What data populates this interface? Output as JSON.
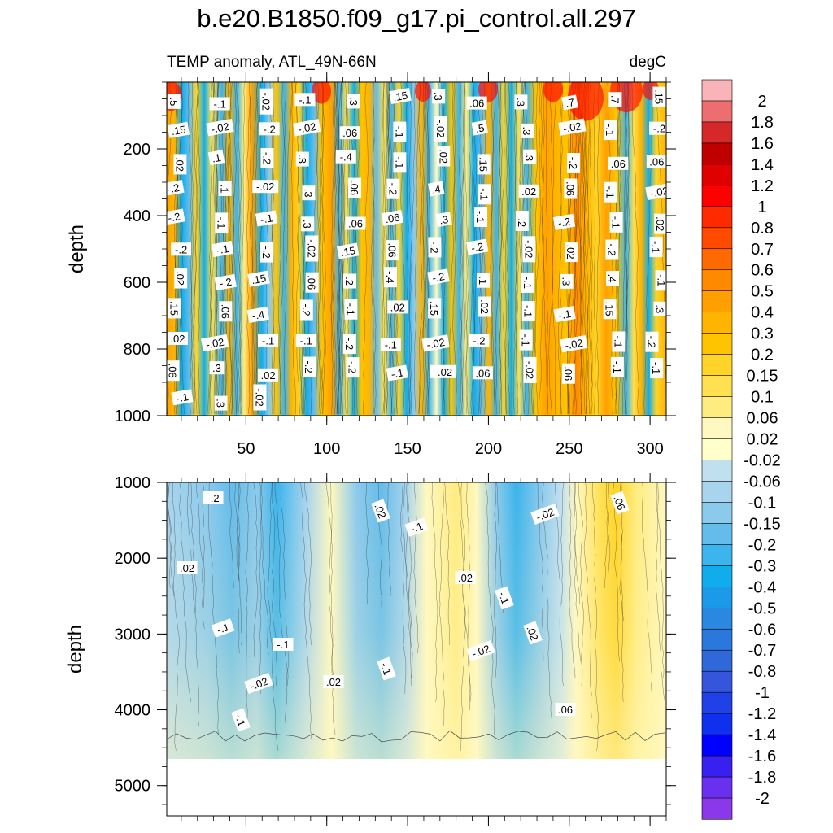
{
  "title": "b.e20.B1850.f09_g17.pi_control.all.297",
  "chart_data": {
    "type": "heatmap",
    "subtitle_left": "TEMP anomaly, ATL_49N-66N",
    "subtitle_right": "degC",
    "xlabel": "",
    "ylabel": "depth",
    "x_range": [
      1,
      310
    ],
    "x_ticks": [
      "50",
      "100",
      "150",
      "200",
      "250",
      "300"
    ],
    "x_tick_values": [
      50,
      100,
      150,
      200,
      250,
      300
    ],
    "upper_panel": {
      "ylim": [
        0,
        1000
      ],
      "y_ticks": [
        "200",
        "400",
        "600",
        "800",
        "1000"
      ],
      "y_tick_values": [
        200,
        400,
        600,
        800,
        1000
      ]
    },
    "lower_panel": {
      "ylim": [
        1000,
        5400
      ],
      "y_ticks": [
        "1000",
        "2000",
        "3000",
        "4000",
        "5000"
      ],
      "y_tick_values": [
        1000,
        2000,
        3000,
        4000,
        5000
      ],
      "data_bottom_depth": 4620
    },
    "colorbar": {
      "levels": [
        "2",
        "1.8",
        "1.6",
        "1.4",
        "1.2",
        "1",
        "0.8",
        "0.7",
        "0.6",
        "0.5",
        "0.4",
        "0.3",
        "0.2",
        "0.15",
        "0.1",
        "0.06",
        "0.02",
        "-0.02",
        "-0.06",
        "-0.1",
        "-0.15",
        "-0.2",
        "-0.3",
        "-0.4",
        "-0.5",
        "-0.6",
        "-0.7",
        "-0.8",
        "-1",
        "-1.2",
        "-1.4",
        "-1.6",
        "-1.8",
        "-2"
      ],
      "colors": [
        "#f8b4b8",
        "#ec6e6e",
        "#d62828",
        "#c00000",
        "#e00000",
        "#ff0000",
        "#ff2a00",
        "#ff4a00",
        "#ff6a00",
        "#ff8a00",
        "#ffa000",
        "#ffb400",
        "#ffc400",
        "#ffd428",
        "#ffe050",
        "#ffec80",
        "#fff8c0",
        "#ffffcc",
        "#c0e0f0",
        "#a8d4ee",
        "#8ccaec",
        "#64bcea",
        "#3cb4ec",
        "#10acec",
        "#1a9ae8",
        "#2a88e0",
        "#2a78dc",
        "#2f68d8",
        "#3455dc",
        "#2040e8",
        "#1030f0",
        "#0000ff",
        "#3820f0",
        "#6a30f0",
        "#8a38ea"
      ]
    },
    "upper_contour_labels": [
      ".5",
      "-.1",
      "-.02",
      "-.1",
      ".3",
      ".15",
      ".3",
      ".06",
      ".3",
      ".7",
      ".7",
      ".15",
      ".15",
      "-.02",
      "-.2",
      "-.02",
      ".06",
      "-.1",
      "-.02",
      ".5",
      ".3",
      "-.02",
      "-.1",
      "-.2",
      ".02",
      ".1",
      "-.2",
      ".3",
      "-.4",
      "-.1",
      ".02",
      ".15",
      ".3",
      "-.2",
      ".06",
      ".06",
      "-.2",
      ".1",
      "-.02",
      ".3",
      ".06",
      "-.2",
      ".4",
      "-.1",
      ".02",
      ".06",
      "-.1",
      "-.02",
      "-.2",
      "-.1",
      "-.1",
      ".3",
      ".06",
      ".06",
      ".3",
      "-.1",
      "-.2",
      "-.2",
      "-.1",
      ".02",
      "-.2",
      "-.1",
      "-.2",
      "-.02",
      ".15",
      ".06",
      "-.2",
      "-.2",
      "-.02",
      ".02",
      "-.2",
      "-.1",
      ".02",
      "-.2",
      ".15",
      ".06",
      ".2",
      "-.4",
      "-.2",
      ".1",
      "-.1",
      ".3",
      ".4",
      "-.1",
      ".15",
      ".06",
      "-.4",
      "-.2",
      "-.1",
      ".02",
      ".15",
      ".02",
      "-.1",
      "-.1",
      ".15",
      ".3",
      ".02",
      "-.02",
      "-.1",
      "-.1",
      "-.2",
      "-.1",
      "-.02",
      "-.2",
      "-.1",
      "-.02",
      "-.1",
      "-.2",
      ".06",
      ".3",
      ".02",
      "-.2",
      "-.2",
      "-.1",
      "-.02",
      ".06",
      "-.02",
      ".06",
      "-.1",
      "-.1",
      "-.1",
      ".3",
      "-.02"
    ],
    "lower_contour_labels": [
      "-.2",
      ".02",
      "-.1",
      ".02",
      ".06",
      "-.02",
      ".02",
      "-.1",
      "-.1",
      "-.1",
      ".02",
      "-.02",
      ".02",
      "-.1",
      "-.02",
      ".06",
      "-.1"
    ]
  }
}
